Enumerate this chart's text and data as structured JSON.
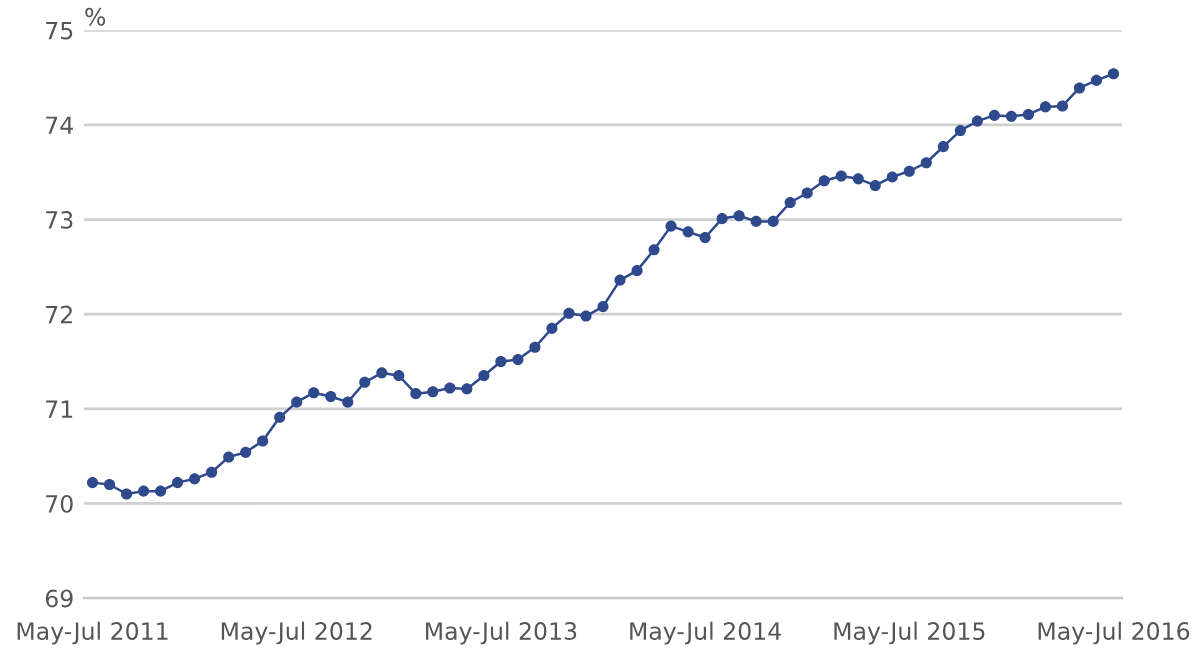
{
  "chart_data": {
    "type": "line",
    "ylabel": "%",
    "categories": [
      "May-Jul 2011",
      null,
      null,
      null,
      null,
      null,
      null,
      null,
      null,
      null,
      null,
      null,
      "May-Jul 2012",
      null,
      null,
      null,
      null,
      null,
      null,
      null,
      null,
      null,
      null,
      null,
      "May-Jul 2013",
      null,
      null,
      null,
      null,
      null,
      null,
      null,
      null,
      null,
      null,
      null,
      "May-Jul 2014",
      null,
      null,
      null,
      null,
      null,
      null,
      null,
      null,
      null,
      null,
      null,
      "May-Jul 2015",
      null,
      null,
      null,
      null,
      null,
      null,
      null,
      null,
      null,
      null,
      null,
      "May-Jul 2016"
    ],
    "series": [
      {
        "color": "#2e4a8c",
        "values": [
          70.22,
          70.2,
          70.1,
          70.13,
          70.13,
          70.22,
          70.26,
          70.33,
          70.49,
          70.54,
          70.66,
          70.91,
          71.07,
          71.17,
          71.13,
          71.07,
          71.28,
          71.38,
          71.35,
          71.16,
          71.18,
          71.22,
          71.21,
          71.35,
          71.5,
          71.52,
          71.65,
          71.85,
          72.01,
          71.98,
          72.08,
          72.36,
          72.46,
          72.68,
          72.93,
          72.87,
          72.81,
          73.01,
          73.04,
          72.98,
          72.98,
          73.18,
          73.28,
          73.41,
          73.46,
          73.43,
          73.36,
          73.45,
          73.51,
          73.6,
          73.77,
          73.94,
          74.04,
          74.1,
          74.09,
          74.11,
          74.19,
          74.2,
          74.39,
          74.47,
          74.54
        ]
      }
    ],
    "ylim": [
      69,
      75
    ],
    "yticks": [
      69,
      70,
      71,
      72,
      73,
      74,
      75
    ],
    "grid": "y",
    "marker": "circle",
    "line_style": "solid",
    "legend": false
  }
}
